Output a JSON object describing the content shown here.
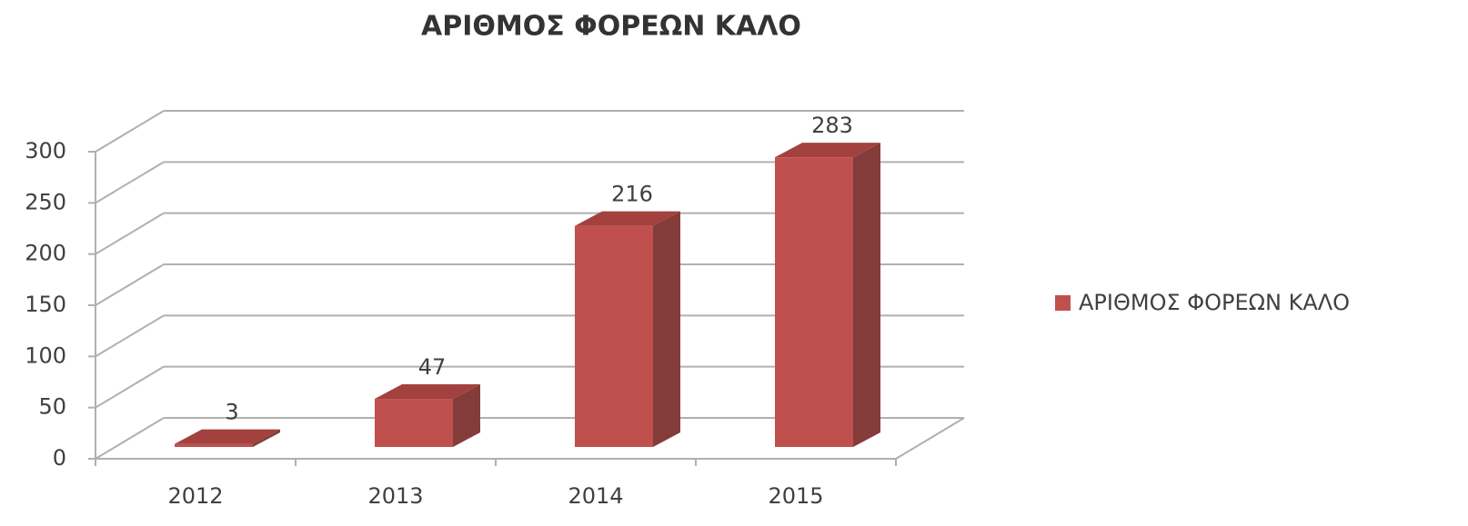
{
  "chart_data": {
    "type": "bar",
    "title": "ΑΡΙΘΜΟΣ ΦΟΡΕΩΝ ΚΑΛΟ",
    "categories": [
      "2012",
      "2013",
      "2014",
      "2015"
    ],
    "series": [
      {
        "name": "ΑΡΙΘΜΟΣ ΦΟΡΕΩΝ ΚΑΛΟ",
        "color": "#c0504d",
        "values": [
          3,
          47,
          216,
          283
        ]
      }
    ],
    "ylim": [
      0,
      300
    ],
    "yticks": [
      0,
      50,
      100,
      150,
      200,
      250,
      300
    ],
    "grid": true,
    "legend": "right"
  }
}
